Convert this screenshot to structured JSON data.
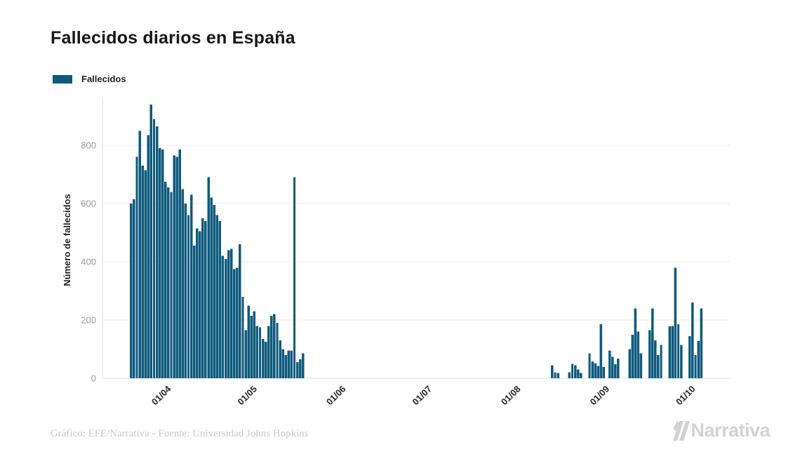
{
  "page": {
    "title": "Fallecidos diarios en España"
  },
  "legend": {
    "label": "Fallecidos"
  },
  "footer": {
    "credit": "Gráfico: EFE/Narrativa - Fuente: Universidad Johns Hopkins"
  },
  "logo": {
    "text": "Narrativa"
  },
  "colors": {
    "bar": "#0e5a7c",
    "grid": "#ededed",
    "axis": "#dedede",
    "y_tick_text": "#9b9b9b",
    "x_tick_text": "#262626",
    "axis_title_text": "#222222"
  },
  "chart_data": {
    "type": "bar",
    "title": "Fallecidos diarios en España",
    "xlabel": "",
    "ylabel": "Número de fallecidos",
    "legend_entries": [
      "Fallecidos"
    ],
    "legend_position": "top-left",
    "grid": true,
    "ylim": [
      0,
      950
    ],
    "y_ticks": [
      0,
      200,
      400,
      600,
      800
    ],
    "x_domain": [
      "2020-03-15",
      "2020-10-20"
    ],
    "x_ticks": [
      {
        "label": "01/04",
        "date": "2020-04-01"
      },
      {
        "label": "01/05",
        "date": "2020-05-01"
      },
      {
        "label": "01/06",
        "date": "2020-06-01"
      },
      {
        "label": "01/07",
        "date": "2020-07-01"
      },
      {
        "label": "01/08",
        "date": "2020-08-01"
      },
      {
        "label": "01/09",
        "date": "2020-09-01"
      },
      {
        "label": "01/10",
        "date": "2020-10-01"
      }
    ],
    "series": [
      {
        "name": "Fallecidos",
        "points": [
          {
            "date": "2020-03-25",
            "value": 600
          },
          {
            "date": "2020-03-26",
            "value": 615
          },
          {
            "date": "2020-03-27",
            "value": 760
          },
          {
            "date": "2020-03-28",
            "value": 850
          },
          {
            "date": "2020-03-29",
            "value": 730
          },
          {
            "date": "2020-03-30",
            "value": 715
          },
          {
            "date": "2020-03-31",
            "value": 835
          },
          {
            "date": "2020-04-01",
            "value": 940
          },
          {
            "date": "2020-04-02",
            "value": 890
          },
          {
            "date": "2020-04-03",
            "value": 865
          },
          {
            "date": "2020-04-04",
            "value": 790
          },
          {
            "date": "2020-04-05",
            "value": 785
          },
          {
            "date": "2020-04-06",
            "value": 675
          },
          {
            "date": "2020-04-07",
            "value": 655
          },
          {
            "date": "2020-04-08",
            "value": 640
          },
          {
            "date": "2020-04-09",
            "value": 765
          },
          {
            "date": "2020-04-10",
            "value": 760
          },
          {
            "date": "2020-04-11",
            "value": 785
          },
          {
            "date": "2020-04-12",
            "value": 650
          },
          {
            "date": "2020-04-13",
            "value": 600
          },
          {
            "date": "2020-04-14",
            "value": 560
          },
          {
            "date": "2020-04-15",
            "value": 630
          },
          {
            "date": "2020-04-16",
            "value": 455
          },
          {
            "date": "2020-04-17",
            "value": 515
          },
          {
            "date": "2020-04-18",
            "value": 505
          },
          {
            "date": "2020-04-19",
            "value": 550
          },
          {
            "date": "2020-04-20",
            "value": 540
          },
          {
            "date": "2020-04-21",
            "value": 690
          },
          {
            "date": "2020-04-22",
            "value": 620
          },
          {
            "date": "2020-04-23",
            "value": 595
          },
          {
            "date": "2020-04-24",
            "value": 560
          },
          {
            "date": "2020-04-25",
            "value": 540
          },
          {
            "date": "2020-04-26",
            "value": 420
          },
          {
            "date": "2020-04-27",
            "value": 410
          },
          {
            "date": "2020-04-28",
            "value": 440
          },
          {
            "date": "2020-04-29",
            "value": 445
          },
          {
            "date": "2020-04-30",
            "value": 375
          },
          {
            "date": "2020-05-01",
            "value": 380
          },
          {
            "date": "2020-05-02",
            "value": 460
          },
          {
            "date": "2020-05-03",
            "value": 280
          },
          {
            "date": "2020-05-04",
            "value": 165
          },
          {
            "date": "2020-05-05",
            "value": 250
          },
          {
            "date": "2020-05-06",
            "value": 215
          },
          {
            "date": "2020-05-07",
            "value": 230
          },
          {
            "date": "2020-05-08",
            "value": 180
          },
          {
            "date": "2020-05-09",
            "value": 175
          },
          {
            "date": "2020-05-10",
            "value": 135
          },
          {
            "date": "2020-05-11",
            "value": 125
          },
          {
            "date": "2020-05-12",
            "value": 180
          },
          {
            "date": "2020-05-13",
            "value": 215
          },
          {
            "date": "2020-05-14",
            "value": 220
          },
          {
            "date": "2020-05-15",
            "value": 190
          },
          {
            "date": "2020-05-16",
            "value": 130
          },
          {
            "date": "2020-05-17",
            "value": 100
          },
          {
            "date": "2020-05-18",
            "value": 80
          },
          {
            "date": "2020-05-19",
            "value": 95
          },
          {
            "date": "2020-05-20",
            "value": 95
          },
          {
            "date": "2020-05-21",
            "value": 690
          },
          {
            "date": "2020-05-22",
            "value": 55
          },
          {
            "date": "2020-05-23",
            "value": 65
          },
          {
            "date": "2020-05-24",
            "value": 85
          },
          {
            "date": "2020-08-19",
            "value": 45
          },
          {
            "date": "2020-08-20",
            "value": 20
          },
          {
            "date": "2020-08-21",
            "value": 18
          },
          {
            "date": "2020-08-25",
            "value": 20
          },
          {
            "date": "2020-08-26",
            "value": 50
          },
          {
            "date": "2020-08-27",
            "value": 45
          },
          {
            "date": "2020-08-28",
            "value": 30
          },
          {
            "date": "2020-08-29",
            "value": 18
          },
          {
            "date": "2020-09-01",
            "value": 85
          },
          {
            "date": "2020-09-02",
            "value": 58
          },
          {
            "date": "2020-09-03",
            "value": 52
          },
          {
            "date": "2020-09-04",
            "value": 42
          },
          {
            "date": "2020-09-05",
            "value": 185
          },
          {
            "date": "2020-09-06",
            "value": 38
          },
          {
            "date": "2020-09-08",
            "value": 95
          },
          {
            "date": "2020-09-09",
            "value": 73
          },
          {
            "date": "2020-09-10",
            "value": 48
          },
          {
            "date": "2020-09-11",
            "value": 68
          },
          {
            "date": "2020-09-15",
            "value": 100
          },
          {
            "date": "2020-09-16",
            "value": 150
          },
          {
            "date": "2020-09-17",
            "value": 240
          },
          {
            "date": "2020-09-18",
            "value": 160
          },
          {
            "date": "2020-09-19",
            "value": 85
          },
          {
            "date": "2020-09-22",
            "value": 165
          },
          {
            "date": "2020-09-23",
            "value": 240
          },
          {
            "date": "2020-09-24",
            "value": 130
          },
          {
            "date": "2020-09-25",
            "value": 80
          },
          {
            "date": "2020-09-26",
            "value": 115
          },
          {
            "date": "2020-09-29",
            "value": 178
          },
          {
            "date": "2020-09-30",
            "value": 180
          },
          {
            "date": "2020-10-01",
            "value": 380
          },
          {
            "date": "2020-10-02",
            "value": 185
          },
          {
            "date": "2020-10-03",
            "value": 115
          },
          {
            "date": "2020-10-06",
            "value": 145
          },
          {
            "date": "2020-10-07",
            "value": 260
          },
          {
            "date": "2020-10-08",
            "value": 80
          },
          {
            "date": "2020-10-09",
            "value": 128
          },
          {
            "date": "2020-10-10",
            "value": 240
          }
        ]
      }
    ]
  }
}
